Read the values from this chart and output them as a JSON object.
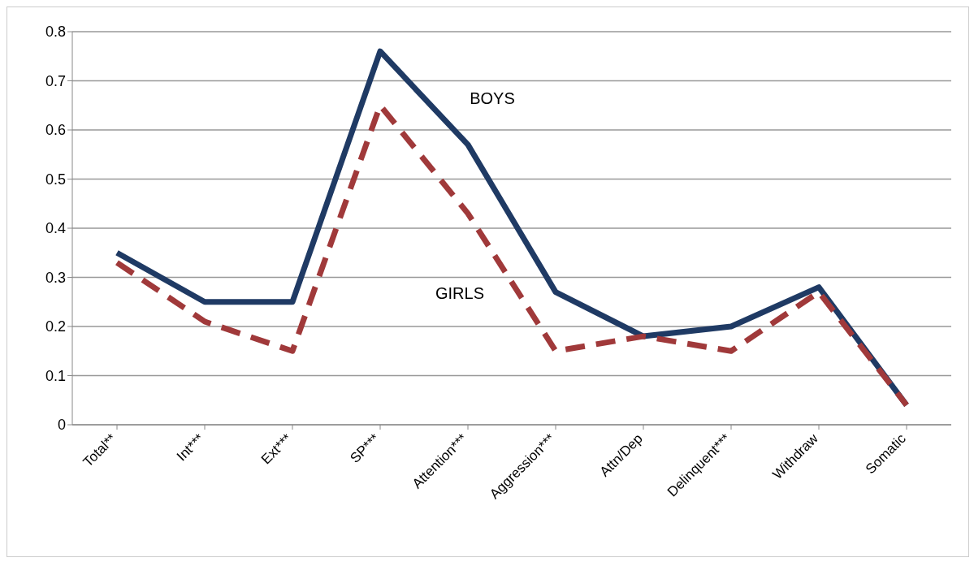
{
  "chart_data": {
    "type": "line",
    "categories": [
      "Total**",
      "Int***",
      "Ext***",
      "SP***",
      "Attention***",
      "Aggression***",
      "Attn/Dep",
      "Delinquent***",
      "Withdraw",
      "Somatic"
    ],
    "series": [
      {
        "name": "BOYS",
        "color": "#1f3a64",
        "line_style": "solid",
        "values": [
          0.35,
          0.25,
          0.25,
          0.76,
          0.57,
          0.27,
          0.18,
          0.2,
          0.28,
          0.04
        ]
      },
      {
        "name": "GIRLS",
        "color": "#a0393a",
        "line_style": "dashed",
        "values": [
          0.33,
          0.21,
          0.15,
          0.65,
          0.43,
          0.15,
          0.18,
          0.15,
          0.27,
          0.04
        ]
      }
    ],
    "ylim": [
      0,
      0.8
    ],
    "yticks": [
      0,
      0.1,
      0.2,
      0.3,
      0.4,
      0.5,
      0.6,
      0.7,
      0.8
    ],
    "grid": "y",
    "legend": false,
    "marker": "none"
  }
}
